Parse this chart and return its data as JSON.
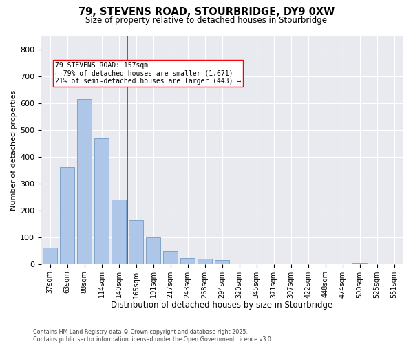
{
  "title_line1": "79, STEVENS ROAD, STOURBRIDGE, DY9 0XW",
  "title_line2": "Size of property relative to detached houses in Stourbridge",
  "xlabel": "Distribution of detached houses by size in Stourbridge",
  "ylabel": "Number of detached properties",
  "bg_color": "#e8eaf0",
  "bar_color": "#aec6e8",
  "bar_edge_color": "#6090c0",
  "categories": [
    "37sqm",
    "63sqm",
    "88sqm",
    "114sqm",
    "140sqm",
    "165sqm",
    "191sqm",
    "217sqm",
    "243sqm",
    "268sqm",
    "294sqm",
    "320sqm",
    "345sqm",
    "371sqm",
    "397sqm",
    "422sqm",
    "448sqm",
    "474sqm",
    "500sqm",
    "525sqm",
    "551sqm"
  ],
  "values": [
    60,
    360,
    615,
    470,
    240,
    163,
    100,
    48,
    22,
    20,
    15,
    0,
    0,
    0,
    0,
    0,
    0,
    0,
    5,
    0,
    0
  ],
  "ylim": [
    0,
    850
  ],
  "yticks": [
    0,
    100,
    200,
    300,
    400,
    500,
    600,
    700,
    800
  ],
  "vline_x_index": 4.5,
  "annotation_title": "79 STEVENS ROAD: 157sqm",
  "annotation_line1": "← 79% of detached houses are smaller (1,671)",
  "annotation_line2": "21% of semi-detached houses are larger (443) →",
  "footer_line1": "Contains HM Land Registry data © Crown copyright and database right 2025.",
  "footer_line2": "Contains public sector information licensed under the Open Government Licence v3.0."
}
